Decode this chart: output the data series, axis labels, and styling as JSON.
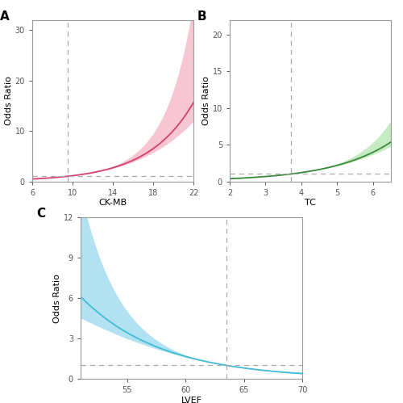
{
  "panel_A": {
    "label": "A",
    "xlabel": "CK-MB",
    "ylabel": "Odds Ratio",
    "x_min": 6,
    "x_max": 22,
    "y_min": 0,
    "y_max": 32,
    "yticks": [
      0,
      10,
      20,
      30
    ],
    "xticks": [
      6,
      10,
      14,
      18,
      22
    ],
    "vline_x": 9.5,
    "hline_y": 1,
    "line_color": "#d44070",
    "fill_color": "#f5c0cf",
    "ref_x": 9.5,
    "curve_scale": 0.22,
    "ci_upper_scale": 0.55,
    "ci_lower_scale": 0.18
  },
  "panel_B": {
    "label": "B",
    "xlabel": "TC",
    "ylabel": "Odds Ratio",
    "x_min": 2.0,
    "x_max": 6.5,
    "y_min": 0,
    "y_max": 22,
    "yticks": [
      0,
      5,
      10,
      15,
      20
    ],
    "xticks": [
      2,
      3,
      4,
      5,
      6
    ],
    "vline_x": 3.7,
    "hline_y": 1,
    "line_color": "#3a8a3a",
    "fill_color": "#c0e8bc",
    "ref_x": 3.7,
    "curve_scale": 0.6,
    "ci_upper_scale": 1.3,
    "ci_lower_scale": 0.35
  },
  "panel_C": {
    "label": "C",
    "xlabel": "LVEF",
    "ylabel": "Odds Ratio",
    "x_min": 51,
    "x_max": 70,
    "y_min": 0,
    "y_max": 12,
    "yticks": [
      0,
      3,
      6,
      9,
      12
    ],
    "xticks": [
      55,
      60,
      65,
      70
    ],
    "vline_x": 63.5,
    "hline_y": 1,
    "line_color": "#40bcd8",
    "fill_color": "#aadff0",
    "ref_x": 63.5,
    "curve_scale": -0.145,
    "ci_upper_scale": 0.55,
    "ci_lower_scale": 0.2
  },
  "background_color": "#ffffff",
  "spine_color": "#999999",
  "dash_color": "#aaaaaa"
}
